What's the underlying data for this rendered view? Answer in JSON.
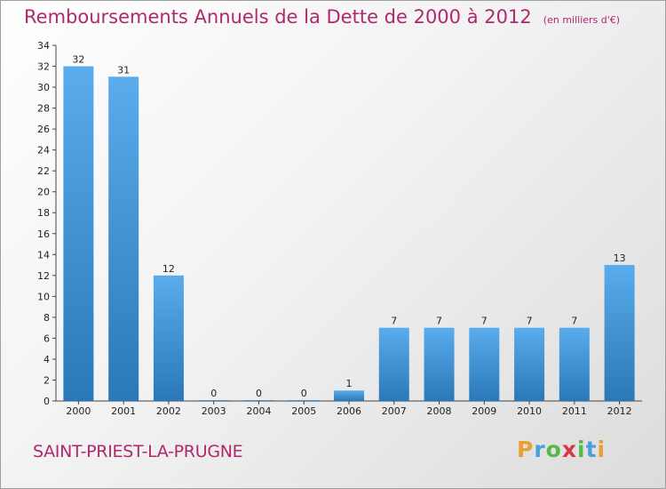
{
  "title": "Remboursements Annuels de la Dette de 2000 à 2012",
  "subtitle": "(en milliers d'€)",
  "commune": "SAINT-PRIEST-LA-PRUGNE",
  "logo": {
    "letters": [
      "P",
      "r",
      "o",
      "x",
      "i",
      "t",
      "i"
    ],
    "colors": [
      "#e8a030",
      "#4aa0d8",
      "#58b848",
      "#d83848",
      "#58b848",
      "#4aa0d8",
      "#e8a030"
    ]
  },
  "colors": {
    "bar_light": "#5aacec",
    "bar_dark": "#2a78b8",
    "title": "#b0286e"
  },
  "chart_data": {
    "type": "bar",
    "title": "Remboursements Annuels de la Dette de 2000 à 2012",
    "subtitle": "(en milliers d'€)",
    "xlabel": "",
    "ylabel": "",
    "categories": [
      "2000",
      "2001",
      "2002",
      "2003",
      "2004",
      "2005",
      "2006",
      "2007",
      "2008",
      "2009",
      "2010",
      "2011",
      "2012"
    ],
    "values": [
      32,
      31,
      12,
      0,
      0,
      0,
      1,
      7,
      7,
      7,
      7,
      7,
      13
    ],
    "ylim": [
      0,
      34
    ],
    "yticks": [
      0,
      2,
      4,
      6,
      8,
      10,
      12,
      14,
      16,
      18,
      20,
      22,
      24,
      26,
      28,
      30,
      32,
      34
    ],
    "grid": false,
    "legend": "none"
  }
}
